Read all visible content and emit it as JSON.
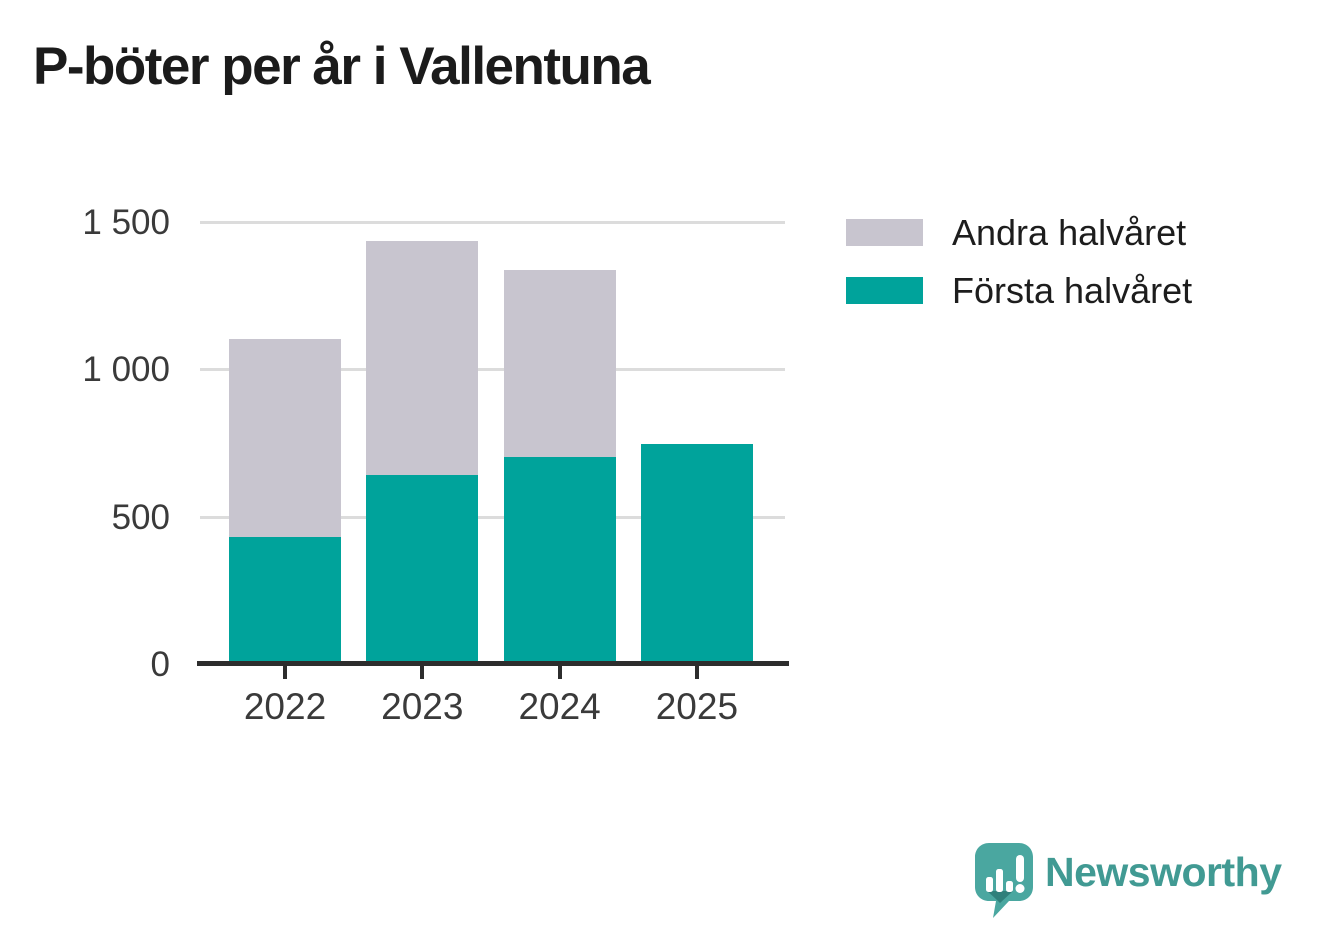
{
  "title": "P-böter per år i Vallentuna",
  "colors": {
    "first_half": "#00a39b",
    "second_half": "#c8c5cf",
    "gridline": "#dcdcdc",
    "axis": "#2d2d2d",
    "tick_text": "#3a3a3a",
    "title_text": "#1b1b1b",
    "legend_text": "#1d1d1d",
    "brand_teal": "#419a93",
    "brand_icon_fill": "#4aa7a0",
    "brand_icon_shadow": "#2f807b"
  },
  "chart_data": {
    "type": "bar",
    "stacked": true,
    "title": "P-böter per år i Vallentuna",
    "categories": [
      "2022",
      "2023",
      "2024",
      "2025"
    ],
    "series": [
      {
        "name": "Första halvåret",
        "color": "#00a39b",
        "values": [
          435,
          645,
          705,
          750
        ]
      },
      {
        "name": "Andra halvåret",
        "color": "#c8c5cf",
        "values": [
          670,
          795,
          635,
          0
        ]
      }
    ],
    "totals": [
      1105,
      1440,
      1340,
      750
    ],
    "xlabel": "",
    "ylabel": "",
    "ylim": [
      0,
      1500
    ],
    "yticks": [
      0,
      500,
      1000,
      1500
    ],
    "ytick_labels": [
      "0",
      "500",
      "1 000",
      "1 500"
    ],
    "grid": true,
    "legend_position": "top-right"
  },
  "legend": {
    "items": [
      {
        "label": "Andra halvåret",
        "color": "#c8c5cf"
      },
      {
        "label": "Första halvåret",
        "color": "#00a39b"
      }
    ]
  },
  "branding": {
    "wordmark": "Newsworthy",
    "icon": "newsworthy-chart-bubble-icon"
  }
}
